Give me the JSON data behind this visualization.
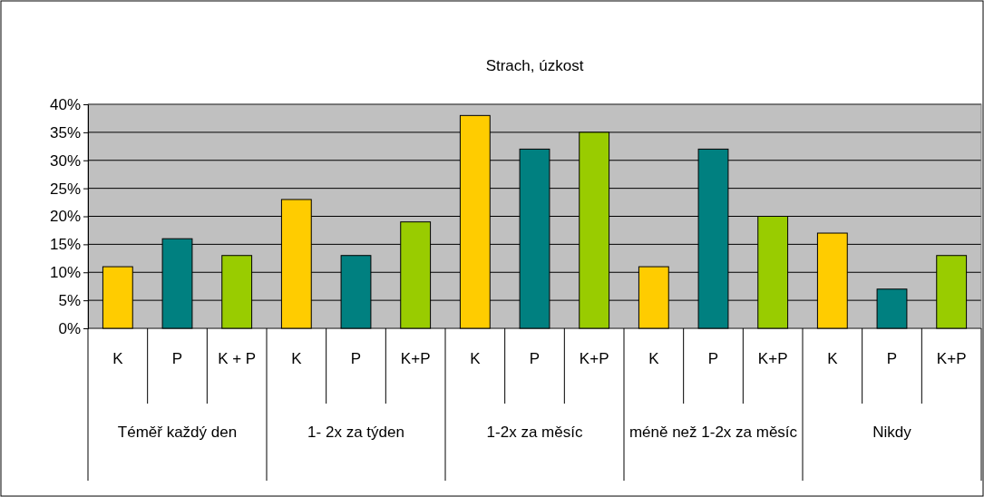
{
  "chart_data": {
    "type": "bar",
    "title": "Strach, úzkost",
    "categories": [
      "K",
      "P",
      "K + P",
      "K",
      "P",
      "K+P",
      "K",
      "P",
      "K+P",
      "K",
      "P",
      "K+P",
      "K",
      "P",
      "K+P"
    ],
    "annotations": [
      "Téměř každý den",
      "1- 2x za týden",
      "1-2x za měsíc",
      "méně než 1-2x za měsíc",
      "Nikdy"
    ],
    "values": [
      11,
      16,
      13,
      23,
      13,
      19,
      38,
      32,
      35,
      11,
      32,
      20,
      17,
      7,
      13
    ],
    "colors": [
      "#ffcc00",
      "#008080",
      "#99cc00",
      "#ffcc00",
      "#008080",
      "#99cc00",
      "#ffcc00",
      "#008080",
      "#99cc00",
      "#ffcc00",
      "#008080",
      "#99cc00",
      "#ffcc00",
      "#008080",
      "#99cc00"
    ],
    "ylim": [
      0,
      40
    ],
    "yticks": [
      {
        "value": 0,
        "label": "0%"
      },
      {
        "value": 5,
        "label": "5%"
      },
      {
        "value": 10,
        "label": "10%"
      },
      {
        "value": 15,
        "label": "15%"
      },
      {
        "value": 20,
        "label": "20%"
      },
      {
        "value": 25,
        "label": "25%"
      },
      {
        "value": 30,
        "label": "30%"
      },
      {
        "value": 35,
        "label": "35%"
      },
      {
        "value": 40,
        "label": "40%"
      }
    ],
    "grid": "y"
  }
}
